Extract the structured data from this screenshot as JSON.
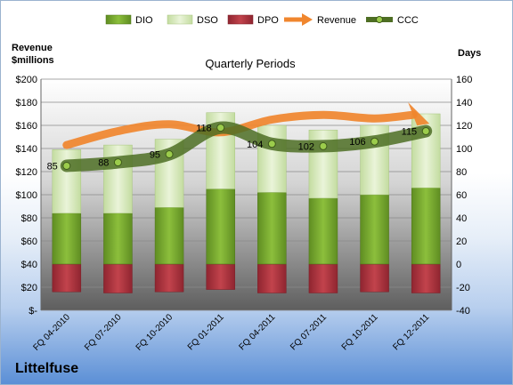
{
  "chart_data": {
    "type": "bar",
    "title": "Quarterly Periods",
    "company": "Littelfuse",
    "ylabel_left_line1": "Revenue",
    "ylabel_left_line2": "$millions",
    "ylabel_right": "Days",
    "left_ylim": [
      0,
      200
    ],
    "right_ylim": [
      -40,
      160
    ],
    "left_ticks": [
      "$-",
      "$20",
      "$40",
      "$60",
      "$80",
      "$100",
      "$120",
      "$140",
      "$160",
      "$180",
      "$200"
    ],
    "right_ticks": [
      "-40",
      "-20",
      "0",
      "20",
      "40",
      "60",
      "80",
      "100",
      "120",
      "140",
      "160"
    ],
    "categories": [
      "FQ 04-2010",
      "FQ 07-2010",
      "FQ 10-2010",
      "FQ 01-2011",
      "FQ 04-2011",
      "FQ 07-2011",
      "FQ 10-2011",
      "FQ 12-2011"
    ],
    "legend": [
      "DIO",
      "DSO",
      "DPO",
      "Revenue",
      "CCC"
    ],
    "series": [
      {
        "name": "DIO",
        "axis": "right",
        "values": [
          44,
          44,
          49,
          65,
          62,
          57,
          60,
          66
        ]
      },
      {
        "name": "DSO",
        "axis": "right",
        "values": [
          55,
          59,
          59,
          66,
          58,
          59,
          60,
          64
        ]
      },
      {
        "name": "DPO",
        "axis": "right",
        "values": [
          -24,
          -25,
          -24,
          -22,
          -25,
          -25,
          -24,
          -25
        ]
      },
      {
        "name": "Revenue",
        "axis": "left",
        "values": [
          143,
          155,
          161,
          154,
          165,
          169,
          166,
          163
        ]
      },
      {
        "name": "CCC",
        "axis": "right",
        "values": [
          85,
          88,
          95,
          118,
          104,
          102,
          106,
          115
        ]
      }
    ],
    "ccc_labels": [
      "85",
      "88",
      "95",
      "118",
      "104",
      "102",
      "106",
      "115"
    ],
    "colors": {
      "DIO": "#76a830",
      "DSO": "#d7e9b8",
      "DPO": "#b0323b",
      "Revenue": "#f0862e",
      "CCC": "#4e6e24"
    }
  }
}
